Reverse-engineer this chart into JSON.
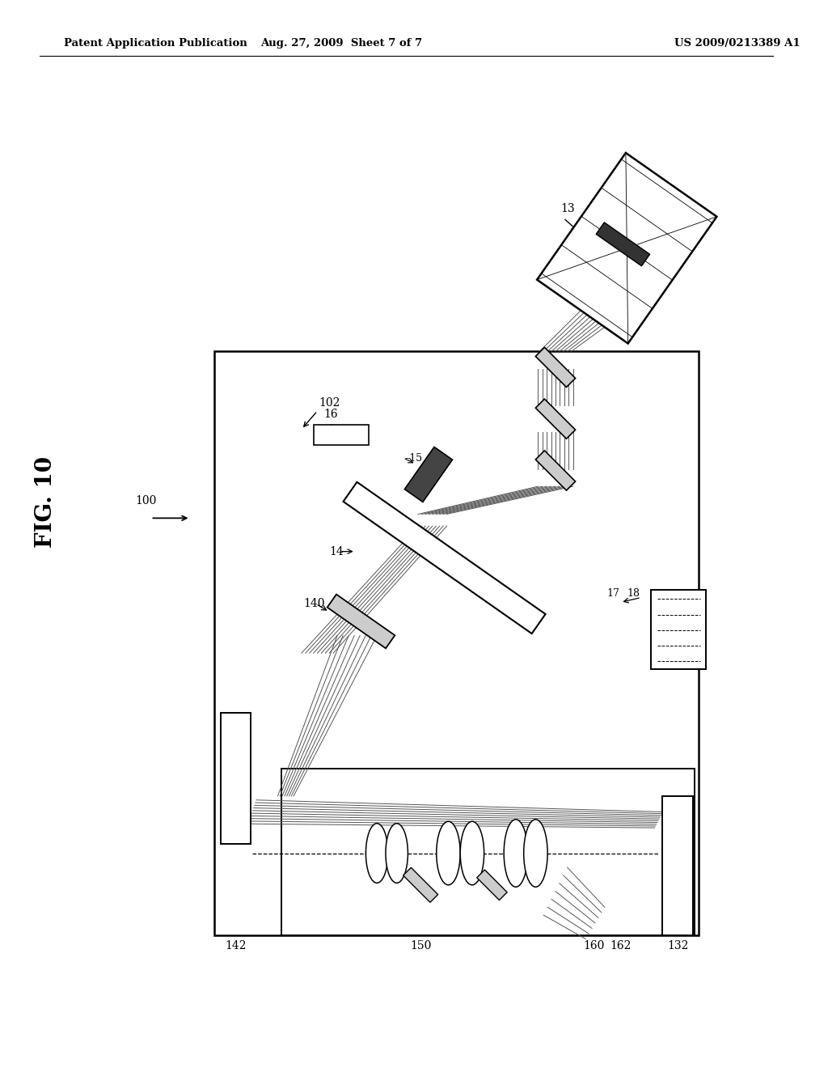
{
  "header_left": "Patent Application Publication",
  "header_mid": "Aug. 27, 2009  Sheet 7 of 7",
  "header_right": "US 2009/0213389 A1",
  "bg_color": "#ffffff",
  "beam_color": "#555555",
  "dark_color": "#333333",
  "gray_color": "#aaaaaa",
  "light_gray": "#dddddd",
  "line_color": "#000000"
}
